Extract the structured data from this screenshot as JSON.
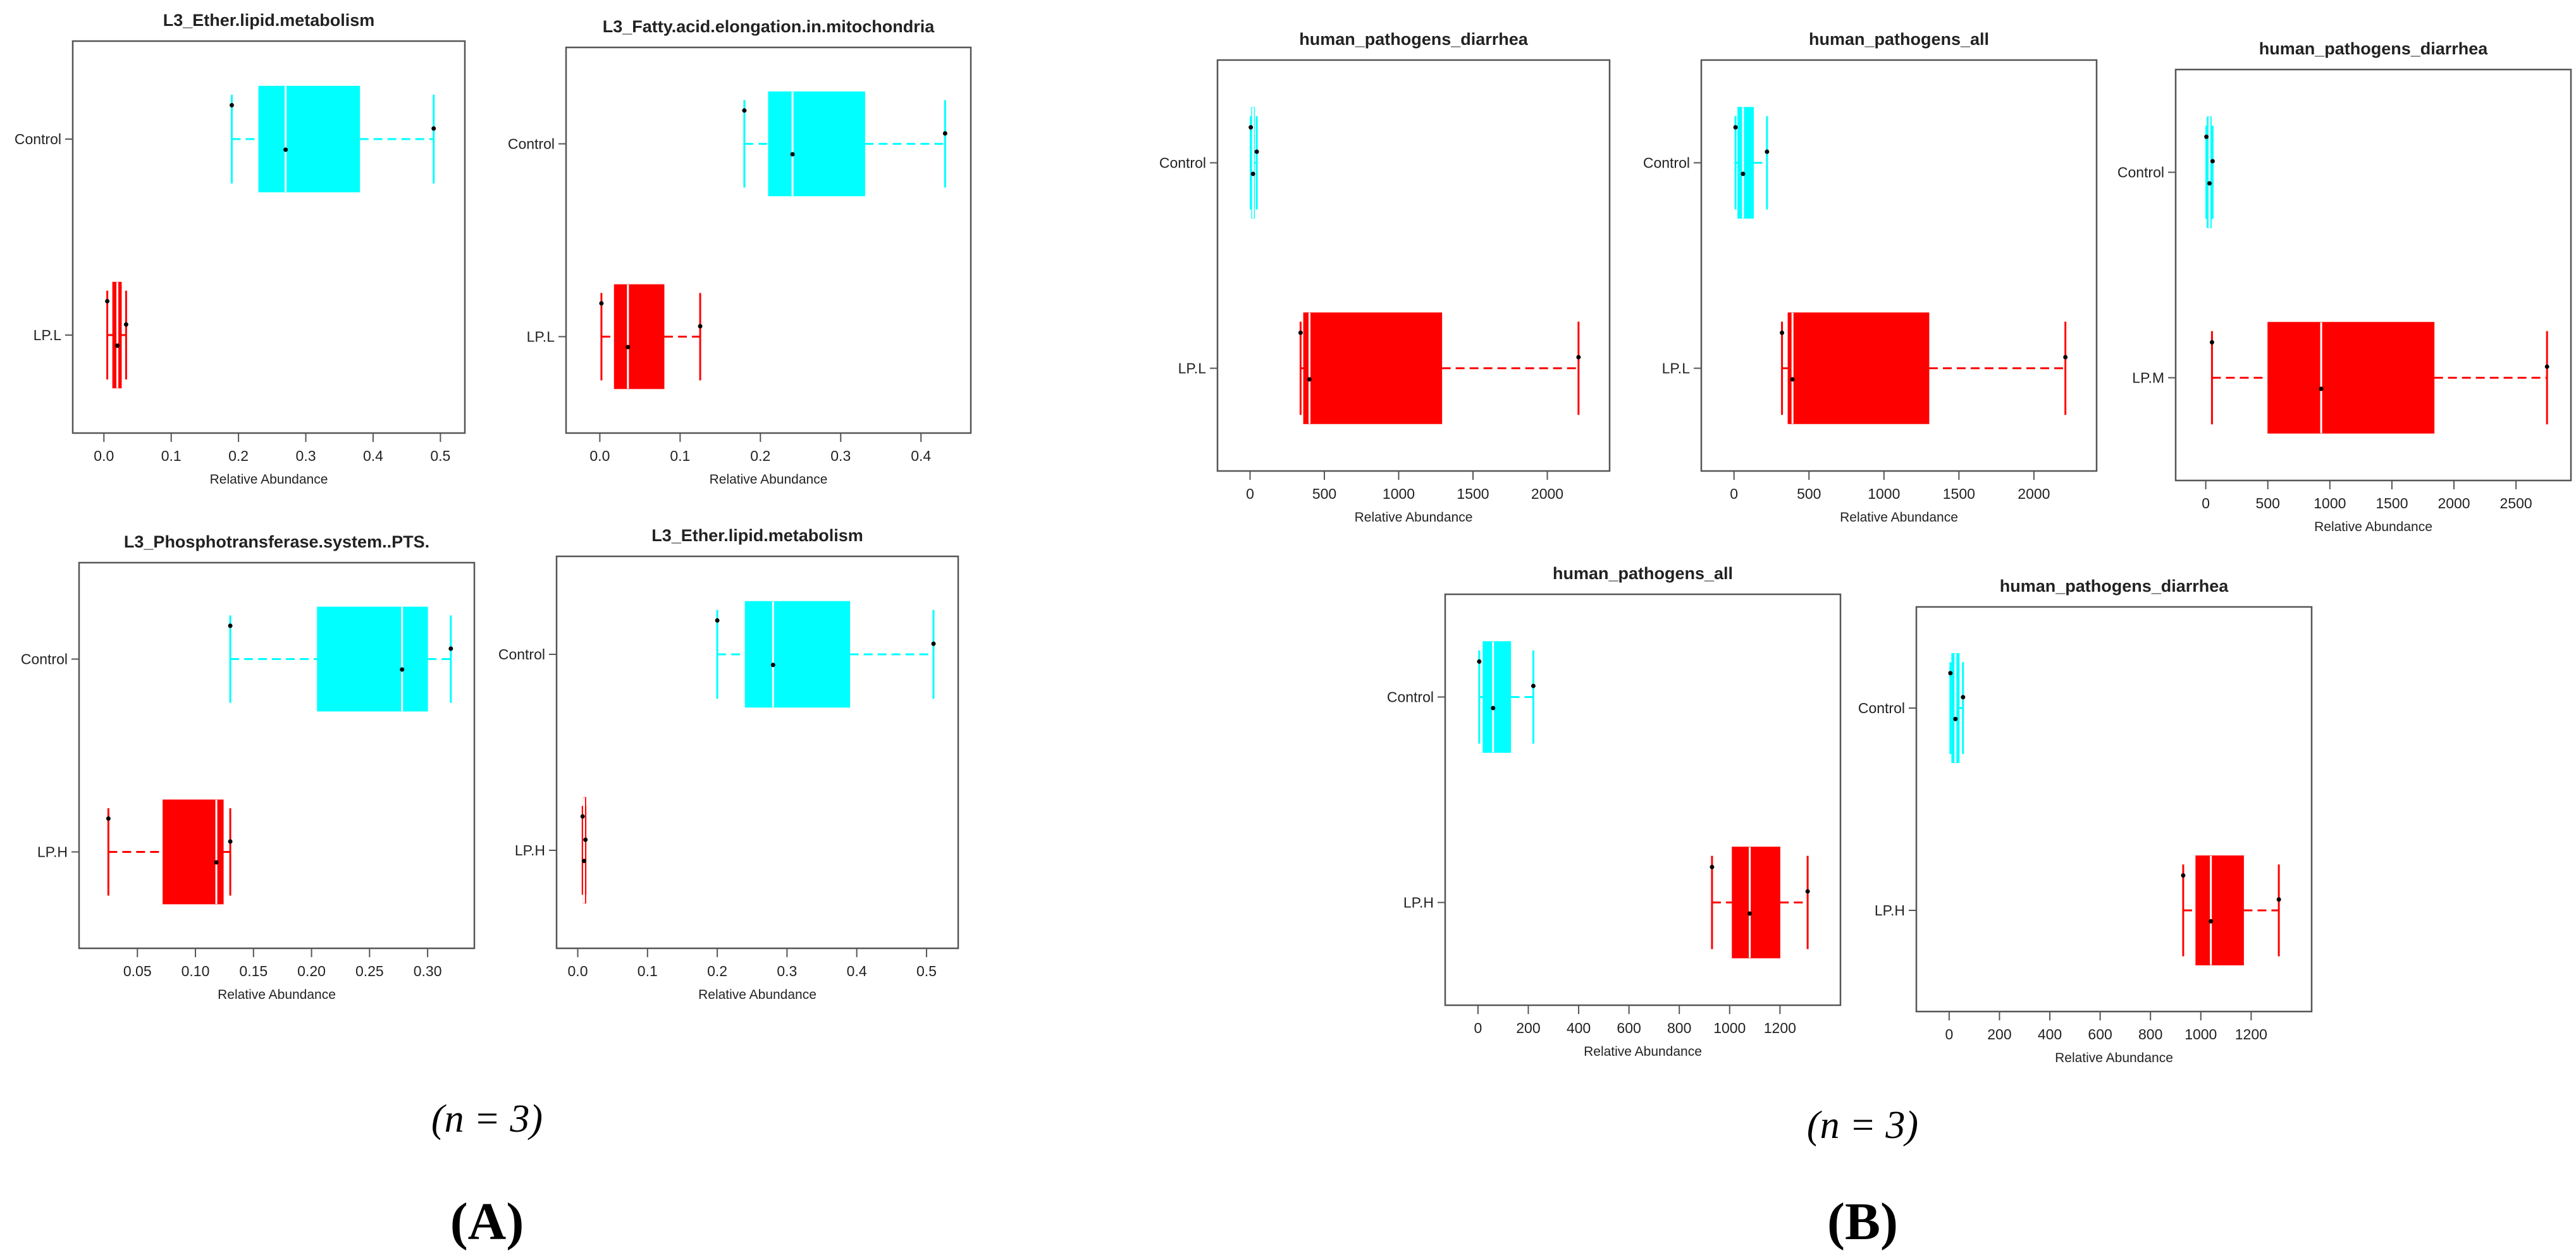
{
  "figure": {
    "panel_A": {
      "label": "(A)",
      "letter": "A",
      "sample_note": "(n = 3)"
    },
    "panel_B": {
      "label": "(B)",
      "letter": "B",
      "sample_note": "(n = 3)"
    }
  },
  "colors": {
    "control": "#00ffff",
    "treatment": "#ff0000",
    "axis": "#555555",
    "median": "#ffffff"
  },
  "chart_data": [
    {
      "type": "boxplot",
      "panel": "A",
      "title": "L3_Ether.lipid.metabolism",
      "xlabel": "Relative Abundance",
      "ylabel": "",
      "xlim": [
        -0.02,
        0.51
      ],
      "xticks": [
        0.0,
        0.1,
        0.2,
        0.3,
        0.4,
        0.5
      ],
      "tick_labels": [
        "0.0",
        "0.1",
        "0.2",
        "0.3",
        "0.4",
        "0.5"
      ],
      "groups": [
        {
          "name": "Control",
          "color": "control",
          "min": 0.19,
          "q1": 0.23,
          "median": 0.27,
          "q3": 0.38,
          "max": 0.49,
          "points": [
            0.19,
            0.27,
            0.49
          ]
        },
        {
          "name": "LP.L",
          "color": "treatment",
          "min": 0.005,
          "q1": 0.013,
          "median": 0.02,
          "q3": 0.026,
          "max": 0.033,
          "points": [
            0.005,
            0.02,
            0.033
          ]
        }
      ]
    },
    {
      "type": "boxplot",
      "panel": "A",
      "title": "L3_Fatty.acid.elongation.in.mitochondria",
      "xlabel": "Relative Abundance",
      "ylabel": "",
      "xlim": [
        -0.02,
        0.44
      ],
      "xticks": [
        0.0,
        0.1,
        0.2,
        0.3,
        0.4
      ],
      "tick_labels": [
        "0.0",
        "0.1",
        "0.2",
        "0.3",
        "0.4"
      ],
      "groups": [
        {
          "name": "Control",
          "color": "control",
          "min": 0.18,
          "q1": 0.21,
          "median": 0.24,
          "q3": 0.33,
          "max": 0.43,
          "points": [
            0.18,
            0.24,
            0.43
          ]
        },
        {
          "name": "LP.L",
          "color": "treatment",
          "min": 0.002,
          "q1": 0.018,
          "median": 0.035,
          "q3": 0.08,
          "max": 0.125,
          "points": [
            0.002,
            0.035,
            0.125
          ]
        }
      ]
    },
    {
      "type": "boxplot",
      "panel": "A",
      "title": "L3_Phosphotransferase.system..PTS.",
      "xlabel": "Relative Abundance",
      "ylabel": "",
      "xlim": [
        0.015,
        0.325
      ],
      "xticks": [
        0.05,
        0.1,
        0.15,
        0.2,
        0.25,
        0.3
      ],
      "tick_labels": [
        "0.05",
        "0.10",
        "0.15",
        "0.20",
        "0.25",
        "0.30"
      ],
      "groups": [
        {
          "name": "Control",
          "color": "control",
          "min": 0.13,
          "q1": 0.205,
          "median": 0.278,
          "q3": 0.3,
          "max": 0.32,
          "points": [
            0.13,
            0.278,
            0.32
          ]
        },
        {
          "name": "LP.H",
          "color": "treatment",
          "min": 0.025,
          "q1": 0.072,
          "median": 0.118,
          "q3": 0.124,
          "max": 0.13,
          "points": [
            0.025,
            0.118,
            0.13
          ]
        }
      ]
    },
    {
      "type": "boxplot",
      "panel": "A",
      "title": "L3_Ether.lipid.metabolism",
      "xlabel": "Relative Abundance",
      "ylabel": "",
      "xlim": [
        -0.005,
        0.52
      ],
      "xticks": [
        0.0,
        0.1,
        0.2,
        0.3,
        0.4,
        0.5
      ],
      "tick_labels": [
        "0.0",
        "0.1",
        "0.2",
        "0.3",
        "0.4",
        "0.5"
      ],
      "groups": [
        {
          "name": "Control",
          "color": "control",
          "min": 0.2,
          "q1": 0.24,
          "median": 0.28,
          "q3": 0.39,
          "max": 0.51,
          "points": [
            0.2,
            0.28,
            0.51
          ]
        },
        {
          "name": "LP.H",
          "color": "treatment",
          "min": 0.007,
          "q1": 0.008,
          "median": 0.009,
          "q3": 0.01,
          "max": 0.011,
          "points": [
            0.007,
            0.009,
            0.011
          ]
        }
      ]
    },
    {
      "type": "boxplot",
      "panel": "B",
      "title": "human_pathogens_diarrhea",
      "xlabel": "Relative Abundance",
      "ylabel": "",
      "xlim": [
        -100,
        2300
      ],
      "xticks": [
        0,
        500,
        1000,
        1500,
        2000
      ],
      "tick_labels": [
        "0",
        "500",
        "1000",
        "1500",
        "2000"
      ],
      "groups": [
        {
          "name": "Control",
          "color": "control",
          "min": 5,
          "q1": 10,
          "median": 20,
          "q3": 30,
          "max": 45,
          "points": [
            5,
            20,
            45
          ]
        },
        {
          "name": "LP.L",
          "color": "treatment",
          "min": 340,
          "q1": 360,
          "median": 400,
          "q3": 1290,
          "max": 2210,
          "points": [
            340,
            400,
            2210
          ]
        }
      ]
    },
    {
      "type": "boxplot",
      "panel": "B",
      "title": "human_pathogens_all",
      "xlabel": "Relative Abundance",
      "ylabel": "",
      "xlim": [
        -100,
        2300
      ],
      "xticks": [
        0,
        500,
        1000,
        1500,
        2000
      ],
      "tick_labels": [
        "0",
        "500",
        "1000",
        "1500",
        "2000"
      ],
      "groups": [
        {
          "name": "Control",
          "color": "control",
          "min": 10,
          "q1": 25,
          "median": 60,
          "q3": 130,
          "max": 220,
          "points": [
            10,
            60,
            220
          ]
        },
        {
          "name": "LP.L",
          "color": "treatment",
          "min": 320,
          "q1": 360,
          "median": 390,
          "q3": 1300,
          "max": 2210,
          "points": [
            320,
            390,
            2210
          ]
        }
      ]
    },
    {
      "type": "boxplot",
      "panel": "B",
      "title": "human_pathogens_diarrhea",
      "xlabel": "Relative Abundance",
      "ylabel": "",
      "xlim": [
        -100,
        2800
      ],
      "xticks": [
        0,
        500,
        1000,
        1500,
        2000,
        2500
      ],
      "tick_labels": [
        "0",
        "500",
        "1000",
        "1500",
        "2000",
        "2500"
      ],
      "groups": [
        {
          "name": "Control",
          "color": "control",
          "min": 5,
          "q1": 10,
          "median": 30,
          "q3": 45,
          "max": 55,
          "points": [
            5,
            30,
            55
          ]
        },
        {
          "name": "LP.M",
          "color": "treatment",
          "min": 50,
          "q1": 500,
          "median": 930,
          "q3": 1840,
          "max": 2750,
          "points": [
            50,
            930,
            2750
          ]
        }
      ]
    },
    {
      "type": "boxplot",
      "panel": "B",
      "title": "human_pathogens_all",
      "xlabel": "Relative Abundance",
      "ylabel": "",
      "xlim": [
        -60,
        1370
      ],
      "xticks": [
        0,
        200,
        400,
        600,
        800,
        1000,
        1200
      ],
      "tick_labels": [
        "0",
        "200",
        "400",
        "600",
        "800",
        "1000",
        "1200"
      ],
      "groups": [
        {
          "name": "Control",
          "color": "control",
          "min": 5,
          "q1": 20,
          "median": 60,
          "q3": 130,
          "max": 220,
          "points": [
            5,
            60,
            220
          ]
        },
        {
          "name": "LP.H",
          "color": "treatment",
          "min": 930,
          "q1": 1010,
          "median": 1080,
          "q3": 1200,
          "max": 1310,
          "points": [
            930,
            1080,
            1310
          ]
        }
      ]
    },
    {
      "type": "boxplot",
      "panel": "B",
      "title": "human_pathogens_diarrhea",
      "xlabel": "Relative Abundance",
      "ylabel": "",
      "xlim": [
        -60,
        1370
      ],
      "xticks": [
        0,
        200,
        400,
        600,
        800,
        1000,
        1200
      ],
      "tick_labels": [
        "0",
        "200",
        "400",
        "600",
        "800",
        "1000",
        "1200"
      ],
      "groups": [
        {
          "name": "Control",
          "color": "control",
          "min": 5,
          "q1": 10,
          "median": 25,
          "q3": 40,
          "max": 55,
          "points": [
            5,
            25,
            55
          ]
        },
        {
          "name": "LP.H",
          "color": "treatment",
          "min": 930,
          "q1": 980,
          "median": 1040,
          "q3": 1170,
          "max": 1310,
          "points": [
            930,
            1040,
            1310
          ]
        }
      ]
    }
  ]
}
